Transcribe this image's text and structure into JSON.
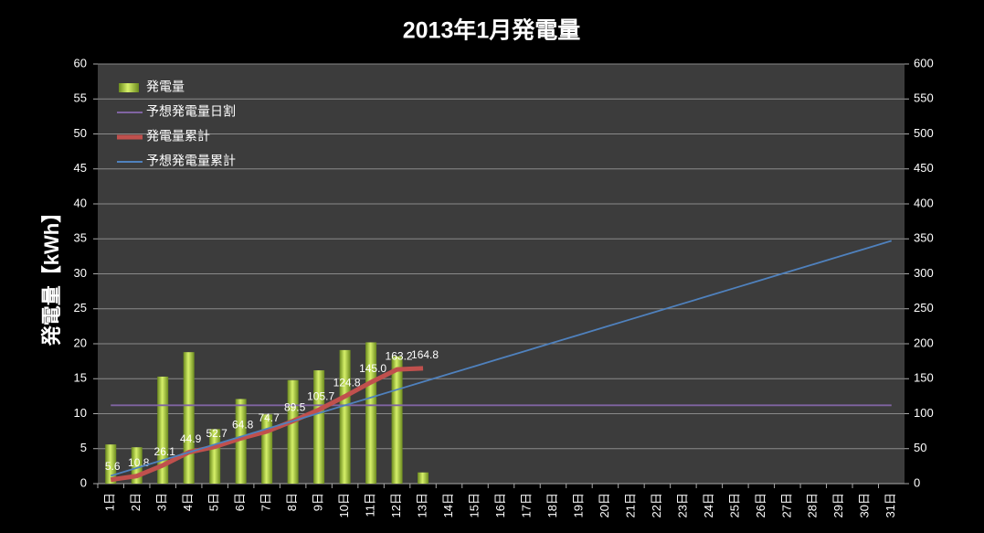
{
  "chart_data": {
    "type": "bar-line",
    "title": "2013年1月発電量",
    "y_label": "発電量【kWh】",
    "categories": [
      "1日",
      "2日",
      "3日",
      "4日",
      "5日",
      "6日",
      "7日",
      "8日",
      "9日",
      "10日",
      "11日",
      "12日",
      "13日",
      "14日",
      "15日",
      "16日",
      "17日",
      "18日",
      "19日",
      "20日",
      "21日",
      "22日",
      "23日",
      "24日",
      "25日",
      "26日",
      "27日",
      "28日",
      "29日",
      "30日",
      "31日"
    ],
    "ylim": [
      0,
      60
    ],
    "yticks": [
      0,
      5,
      10,
      15,
      20,
      25,
      30,
      35,
      40,
      45,
      50,
      55,
      60
    ],
    "y2lim": [
      0,
      600
    ],
    "y2ticks": [
      0,
      50,
      100,
      150,
      200,
      250,
      300,
      350,
      400,
      450,
      500,
      550,
      600
    ],
    "grid": true,
    "legend": "top-left",
    "series": [
      {
        "name": "発電量",
        "type": "bar",
        "color": "#9bc43a",
        "values": [
          5.6,
          5.2,
          15.3,
          18.8,
          7.8,
          12.1,
          9.9,
          14.8,
          16.2,
          19.1,
          20.2,
          18.2,
          1.6,
          null,
          null,
          null,
          null,
          null,
          null,
          null,
          null,
          null,
          null,
          null,
          null,
          null,
          null,
          null,
          null,
          null,
          null
        ]
      },
      {
        "name": "予想発電量日割",
        "type": "line",
        "color": "#8064a2",
        "values": [
          11.2,
          11.2,
          11.2,
          11.2,
          11.2,
          11.2,
          11.2,
          11.2,
          11.2,
          11.2,
          11.2,
          11.2,
          11.2,
          11.2,
          11.2,
          11.2,
          11.2,
          11.2,
          11.2,
          11.2,
          11.2,
          11.2,
          11.2,
          11.2,
          11.2,
          11.2,
          11.2,
          11.2,
          11.2,
          11.2,
          11.2
        ]
      },
      {
        "name": "発電量累計",
        "type": "line",
        "axis": "y2",
        "color": "#c0504d",
        "values": [
          5.6,
          10.8,
          26.1,
          44.9,
          52.7,
          64.8,
          74.7,
          89.5,
          105.7,
          124.8,
          145.0,
          163.2,
          164.8,
          null,
          null,
          null,
          null,
          null,
          null,
          null,
          null,
          null,
          null,
          null,
          null,
          null,
          null,
          null,
          null,
          null,
          null
        ],
        "value_labels": [
          "5.6",
          "10.8",
          "26.1",
          "44.9",
          "52.7",
          "64.8",
          "74.7",
          "89.5",
          "105.7",
          "124.8",
          "145.0",
          "163.2",
          "164.8",
          null,
          null,
          null,
          null,
          null,
          null,
          null,
          null,
          null,
          null,
          null,
          null,
          null,
          null,
          null,
          null,
          null,
          null
        ]
      },
      {
        "name": "予想発電量累計",
        "type": "line",
        "axis": "y2",
        "color": "#4f81bd",
        "values": [
          11.2,
          22.4,
          33.6,
          44.8,
          56,
          67.2,
          78.4,
          89.6,
          100.8,
          112,
          123.2,
          134.4,
          145.6,
          156.8,
          168,
          179.2,
          190.4,
          201.6,
          212.8,
          224,
          235.2,
          246.4,
          257.6,
          268.8,
          280,
          291.2,
          302.4,
          313.6,
          324.8,
          336,
          347.2
        ]
      }
    ]
  }
}
